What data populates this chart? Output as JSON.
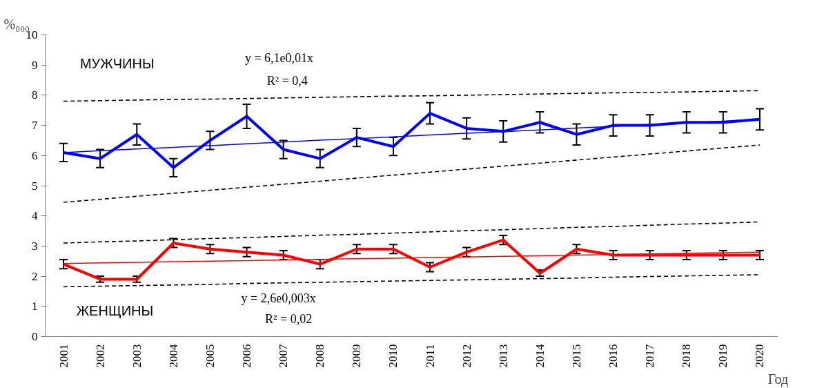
{
  "chart_data": {
    "type": "line",
    "categories": [
      "2001",
      "2002",
      "2003",
      "2004",
      "2005",
      "2006",
      "2007",
      "2008",
      "2009",
      "2010",
      "2011",
      "2012",
      "2013",
      "2014",
      "2015",
      "2016",
      "2017",
      "2018",
      "2019",
      "2020"
    ],
    "series": [
      {
        "color": "#0000ff",
        "values": [
          6.1,
          5.9,
          6.7,
          5.6,
          6.5,
          7.3,
          6.2,
          5.9,
          6.6,
          6.3,
          7.4,
          6.9,
          6.8,
          7.1,
          6.7,
          7.0,
          7.0,
          7.1,
          7.1,
          7.2
        ],
        "errors": [
          0.3,
          0.3,
          0.35,
          0.3,
          0.3,
          0.4,
          0.3,
          0.3,
          0.3,
          0.3,
          0.35,
          0.35,
          0.35,
          0.35,
          0.35,
          0.35,
          0.35,
          0.35,
          0.35,
          0.35
        ]
      },
      {
        "color": "#0000ff",
        "values": [
          6.1,
          6.16,
          6.22,
          6.27,
          6.33,
          6.39,
          6.45,
          6.51,
          6.56,
          6.62,
          6.68,
          6.74,
          6.79,
          6.85,
          6.91,
          6.97,
          7.03,
          7.08,
          7.14,
          7.2
        ]
      },
      {
        "color": "#000000",
        "values": [
          7.8,
          7.82,
          7.84,
          7.86,
          7.87,
          7.89,
          7.91,
          7.93,
          7.95,
          7.97,
          7.98,
          8.0,
          8.02,
          8.04,
          8.06,
          8.08,
          8.09,
          8.11,
          8.13,
          8.15
        ],
        "line_style": "dashed"
      },
      {
        "color": "#000000",
        "values": [
          4.45,
          4.55,
          4.65,
          4.75,
          4.85,
          4.95,
          5.05,
          5.15,
          5.25,
          5.35,
          5.45,
          5.55,
          5.65,
          5.75,
          5.85,
          5.95,
          6.05,
          6.15,
          6.25,
          6.35
        ],
        "line_style": "dashed"
      },
      {
        "color": "#ff0000",
        "values": [
          2.4,
          1.9,
          1.9,
          3.1,
          2.9,
          2.8,
          2.7,
          2.4,
          2.9,
          2.9,
          2.3,
          2.8,
          3.2,
          2.1,
          2.9,
          2.7,
          2.7,
          2.7,
          2.7,
          2.7
        ],
        "errors": [
          0.15,
          0.1,
          0.1,
          0.15,
          0.15,
          0.15,
          0.15,
          0.15,
          0.15,
          0.15,
          0.15,
          0.15,
          0.15,
          0.1,
          0.15,
          0.15,
          0.15,
          0.15,
          0.15,
          0.15
        ]
      },
      {
        "color": "#ff0000",
        "values": [
          2.42,
          2.44,
          2.46,
          2.48,
          2.5,
          2.52,
          2.54,
          2.56,
          2.58,
          2.6,
          2.62,
          2.64,
          2.66,
          2.68,
          2.7,
          2.72,
          2.74,
          2.76,
          2.78,
          2.8
        ]
      },
      {
        "color": "#000000",
        "values": [
          3.1,
          3.14,
          3.17,
          3.21,
          3.25,
          3.28,
          3.32,
          3.36,
          3.39,
          3.43,
          3.47,
          3.51,
          3.54,
          3.58,
          3.62,
          3.65,
          3.69,
          3.73,
          3.76,
          3.8
        ],
        "line_style": "dashed"
      },
      {
        "color": "#000000",
        "values": [
          1.65,
          1.67,
          1.69,
          1.71,
          1.73,
          1.76,
          1.78,
          1.8,
          1.82,
          1.84,
          1.86,
          1.88,
          1.9,
          1.92,
          1.94,
          1.97,
          1.99,
          2.01,
          2.03,
          2.05
        ],
        "line_style": "dashed"
      }
    ],
    "ylim": [
      0,
      10
    ],
    "yticks": [
      0,
      1,
      2,
      3,
      4,
      5,
      6,
      7,
      8,
      9,
      10
    ],
    "xlabel": "Год",
    "ylabel": "%₀₀₀",
    "annotations": [
      "МУЖЧИНЫ",
      "y = 6,1e0,01x",
      "R² = 0,4",
      "ЖЕНЩИНЫ",
      "y = 2,6e0,003x",
      "R² = 0,02"
    ],
    "grid": false
  }
}
